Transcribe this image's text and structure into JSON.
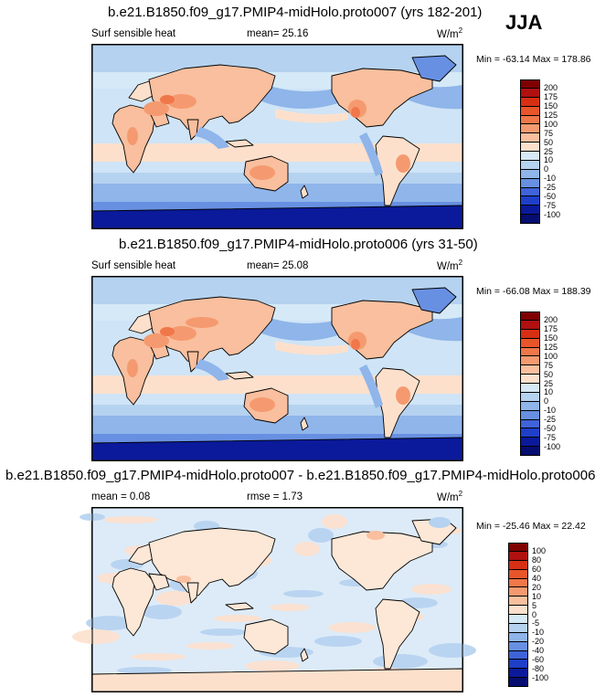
{
  "season": "JJA",
  "panels": [
    {
      "title": "b.e21.B1850.f09_g17.PMIP4-midHolo.proto007 (yrs 182-201)",
      "left_label": "Surf sensible heat",
      "stat_label": "mean=  25.16",
      "stat2_label": "",
      "units": "W/m",
      "units_exp": "2",
      "minmax": "Min = -63.14 Max = 178.86"
    },
    {
      "title": "b.e21.B1850.f09_g17.PMIP4-midHolo.proto006 (yrs 31-50)",
      "left_label": "Surf sensible heat",
      "stat_label": "mean=  25.08",
      "stat2_label": "",
      "units": "W/m",
      "units_exp": "2",
      "minmax": "Min = -66.08 Max = 188.39"
    },
    {
      "title": "b.e21.B1850.f09_g17.PMIP4-midHolo.proto007 - b.e21.B1850.f09_g17.PMIP4-midHolo.proto006",
      "left_label": "mean =   0.08",
      "stat_label": "",
      "stat2_label": "rmse =   1.73",
      "units": "W/m",
      "units_exp": "2",
      "minmax": "Min = -25.46 Max = 22.42"
    }
  ],
  "chart_data": [
    {
      "type": "heatmap",
      "variable": "Surf sensible heat",
      "colorbar_levels": [
        "200",
        "175",
        "150",
        "125",
        "100",
        "75",
        "50",
        "25",
        "10",
        "0",
        "-10",
        "-25",
        "-50",
        "-75",
        "-100"
      ],
      "colorbar_colors": [
        "#7f0000",
        "#b01010",
        "#d62f14",
        "#e8552a",
        "#f0774a",
        "#f59a70",
        "#f9bf9e",
        "#fde0cc",
        "#d6e9f7",
        "#b5d2f0",
        "#8fb5ea",
        "#6890e2",
        "#3f63d8",
        "#1f3fc8",
        "#0a1a9a",
        "#050d70"
      ]
    },
    {
      "type": "heatmap",
      "variable": "Surf sensible heat",
      "colorbar_levels": [
        "200",
        "175",
        "150",
        "125",
        "100",
        "75",
        "50",
        "25",
        "10",
        "0",
        "-10",
        "-25",
        "-50",
        "-75",
        "-100"
      ],
      "colorbar_colors": [
        "#7f0000",
        "#b01010",
        "#d62f14",
        "#e8552a",
        "#f0774a",
        "#f59a70",
        "#f9bf9e",
        "#fde0cc",
        "#d6e9f7",
        "#b5d2f0",
        "#8fb5ea",
        "#6890e2",
        "#3f63d8",
        "#1f3fc8",
        "#0a1a9a",
        "#050d70"
      ]
    },
    {
      "type": "heatmap",
      "variable": "difference",
      "colorbar_levels": [
        "100",
        "80",
        "60",
        "40",
        "20",
        "10",
        "5",
        "0",
        "-5",
        "-10",
        "-20",
        "-40",
        "-60",
        "-80",
        "-100"
      ],
      "colorbar_colors": [
        "#7f0000",
        "#b01010",
        "#d62f14",
        "#e8552a",
        "#f0774a",
        "#f59a70",
        "#f9bf9e",
        "#fde0cc",
        "#d6e9f7",
        "#b5d2f0",
        "#8fb5ea",
        "#6890e2",
        "#3f63d8",
        "#1f3fc8",
        "#0a1a9a",
        "#050d70"
      ]
    }
  ]
}
